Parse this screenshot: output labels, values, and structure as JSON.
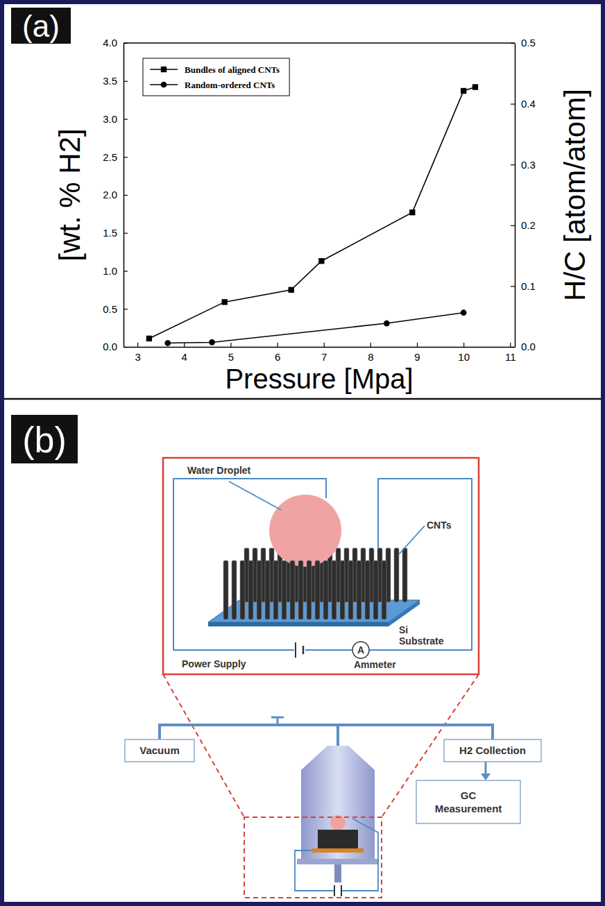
{
  "panels": [
    "(a)",
    "(b)"
  ],
  "chart_data": {
    "type": "line",
    "xlabel": "Pressure [Mpa]",
    "ylabel": "[wt. % H2]",
    "y2label": "H/C [atom/atom]",
    "xlim": [
      2.7,
      11.1
    ],
    "xticks": [
      3,
      4,
      5,
      6,
      7,
      8,
      9,
      10,
      11
    ],
    "ylim": [
      0,
      4
    ],
    "yticks": [
      {
        "value": 0,
        "label": "0.0"
      },
      {
        "value": 0.5,
        "label": "0.5"
      },
      {
        "value": 1,
        "label": "1.0"
      },
      {
        "value": 1.5,
        "label": "1.5"
      },
      {
        "value": 2,
        "label": "2.0"
      },
      {
        "value": 2.5,
        "label": "2.5"
      },
      {
        "value": 3,
        "label": "3.0"
      },
      {
        "value": 3.5,
        "label": "3.5"
      },
      {
        "value": 4,
        "label": "4.0"
      }
    ],
    "y2lim": [
      0,
      0.5
    ],
    "y2ticks": [
      {
        "value": 0,
        "label": "0.0"
      },
      {
        "value": 0.1,
        "label": "0.1"
      },
      {
        "value": 0.2,
        "label": "0.2"
      },
      {
        "value": 0.3,
        "label": "0.3"
      },
      {
        "value": 0.4,
        "label": "0.4"
      },
      {
        "value": 0.5,
        "label": "0.5"
      }
    ],
    "grid": false,
    "legend": "upper left",
    "series": [
      {
        "name": "Bundles of aligned CNTs",
        "color": "#000000",
        "marker": "square",
        "line_style": "solid",
        "x": [
          3.25,
          4.87,
          6.3,
          6.95,
          8.9,
          10.0,
          10.25
        ],
        "values": [
          0.11,
          0.59,
          0.75,
          1.13,
          1.77,
          3.37,
          3.42
        ]
      },
      {
        "name": "Random-ordered CNTs",
        "color": "#000000",
        "marker": "circle",
        "line_style": "solid",
        "x": [
          3.65,
          4.6,
          8.35,
          10.0
        ],
        "values": [
          0.05,
          0.06,
          0.31,
          0.45
        ]
      }
    ]
  },
  "diagram": {
    "water_droplet": "Water Droplet",
    "cnts": "CNTs",
    "substrate": [
      "Si",
      "Substrate"
    ],
    "power_supply": "Power Supply",
    "ammeter_symbol": "A",
    "ammeter": "Ammeter",
    "vacuum": "Vacuum",
    "h2_collection": "H2 Collection",
    "gc_measurement": [
      "GC",
      "Measurement"
    ]
  }
}
